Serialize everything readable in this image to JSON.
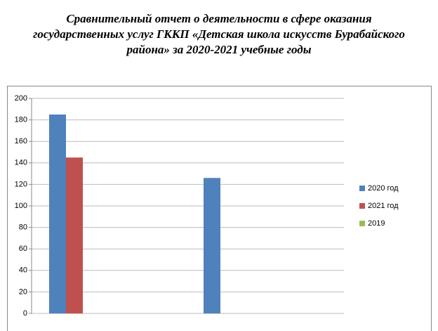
{
  "chart_data": {
    "type": "bar",
    "title": [
      "Сравнительный отчет о деятельности в сфере оказания",
      "государственных услуг ГККП «Детская школа искусств Бурабайского",
      "района» за 2020-2021 учебные годы"
    ],
    "categories": [
      null,
      null
    ],
    "series": [
      {
        "name": "2020 год",
        "color": "#4f81bd",
        "values": [
          185,
          126
        ]
      },
      {
        "name": "2021 год",
        "color": "#c0504d",
        "values": [
          145,
          0
        ]
      },
      {
        "name": "2019",
        "color": "#9bbb59",
        "values": [
          0,
          0
        ]
      }
    ],
    "ylim": [
      0,
      200
    ],
    "yticks": [
      0,
      20,
      40,
      60,
      80,
      100,
      120,
      140,
      160,
      180,
      200
    ],
    "grid": true,
    "legend": "right"
  }
}
